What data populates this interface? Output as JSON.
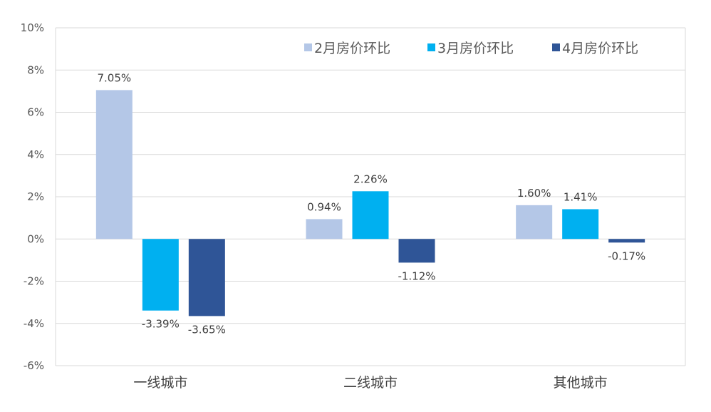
{
  "chart_data": {
    "type": "bar",
    "title": "",
    "xlabel": "",
    "ylabel": "",
    "categories": [
      "一线城市",
      "二线城市",
      "其他城市"
    ],
    "series": [
      {
        "name": "2月房价环比",
        "color": "#B4C7E7",
        "values": [
          7.05,
          0.94,
          1.6
        ]
      },
      {
        "name": "3月房价环比",
        "color": "#00B0F0",
        "values": [
          -3.39,
          2.26,
          1.41
        ]
      },
      {
        "name": "4月房价环比",
        "color": "#2F5597",
        "values": [
          -3.65,
          -1.12,
          -0.17
        ]
      }
    ],
    "data_labels": [
      [
        "7.05%",
        "0.94%",
        "1.60%"
      ],
      [
        "-3.39%",
        "2.26%",
        "1.41%"
      ],
      [
        "-3.65%",
        "-1.12%",
        "-0.17%"
      ]
    ],
    "ylim": [
      -6,
      10
    ],
    "yticks": [
      10,
      8,
      6,
      4,
      2,
      0,
      -2,
      -4,
      -6
    ],
    "ytick_labels": [
      "10%",
      "8%",
      "6%",
      "4%",
      "2%",
      "0%",
      "-2%",
      "-4%",
      "-6%"
    ],
    "grid": true,
    "legend_position": "top-right"
  }
}
